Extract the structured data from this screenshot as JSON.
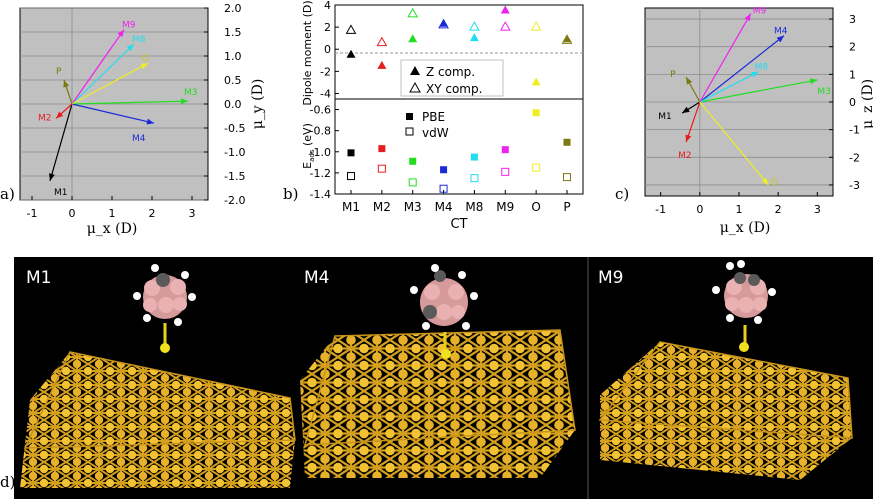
{
  "panel_labels": [
    "a)",
    "b)",
    "c)",
    "d)"
  ],
  "colors": {
    "plot_bg": "#c0c0c0",
    "M1": "#000000",
    "M2": "#e61e1e",
    "M3": "#22dd22",
    "M4": "#1a2ad8",
    "M8": "#22ddee",
    "M9": "#ee22ee",
    "O": "#eeee22",
    "P": "#7a7a10",
    "gold": "#e2b52a",
    "render_bg": "#000000"
  },
  "chart_data": [
    {
      "id": "a",
      "type": "scatter",
      "mode": "vectors",
      "xlabel": "μ_x (D)",
      "ylabel": "μ_y (D)",
      "xticks": [
        -1,
        0,
        1,
        2,
        3
      ],
      "yticks": [
        "2.0",
        "1.5",
        "1.0",
        "0.5",
        "0.0",
        "-0.5",
        "-1.0",
        "-1.5",
        "-2.0"
      ],
      "xlim": [
        -1.3,
        3.4
      ],
      "ylim": [
        -2.0,
        2.0
      ],
      "grid": true,
      "series": [
        {
          "name": "M1",
          "x": -0.55,
          "y": -1.6
        },
        {
          "name": "M2",
          "x": -0.4,
          "y": -0.3
        },
        {
          "name": "M3",
          "x": 2.9,
          "y": 0.06
        },
        {
          "name": "M4",
          "x": 2.05,
          "y": -0.4
        },
        {
          "name": "M8",
          "x": 1.55,
          "y": 1.25
        },
        {
          "name": "M9",
          "x": 1.3,
          "y": 1.55
        },
        {
          "name": "O",
          "x": 1.9,
          "y": 0.85
        },
        {
          "name": "P",
          "x": -0.2,
          "y": 0.5
        }
      ]
    },
    {
      "id": "b_top",
      "type": "scatter",
      "ylabel": "Dipole moment (D)",
      "categories": [
        "M1",
        "M2",
        "M3",
        "M4",
        "M8",
        "M9",
        "O",
        "P"
      ],
      "yticks": [
        "4",
        "2",
        "0",
        "-2",
        "-4"
      ],
      "ylim": [
        -4.5,
        4.0
      ],
      "series": [
        {
          "name": "Z comp.",
          "marker": "filled-triangle",
          "values": [
            -0.5,
            -1.5,
            0.9,
            2.3,
            1.0,
            3.5,
            -3.0,
            0.9
          ]
        },
        {
          "name": "XY comp.",
          "marker": "open-triangle",
          "values": [
            1.7,
            0.6,
            3.2,
            2.2,
            2.0,
            2.0,
            2.0,
            0.8
          ]
        }
      ],
      "legend_position": "bottom-right"
    },
    {
      "id": "b_bottom",
      "type": "scatter",
      "ylabel": "E_ads (eV)",
      "xlabel": "CT",
      "categories": [
        "M1",
        "M2",
        "M3",
        "M4",
        "M8",
        "M9",
        "O",
        "P"
      ],
      "yticks": [
        "-0.6",
        "-0.8",
        "-1.0",
        "-1.2",
        "-1.4"
      ],
      "ylim": [
        -1.4,
        -0.5
      ],
      "series": [
        {
          "name": "PBE",
          "marker": "filled-square",
          "values": [
            -1.01,
            -0.97,
            -1.09,
            -1.17,
            -1.05,
            -0.98,
            -0.63,
            -0.91
          ]
        },
        {
          "name": "vdW",
          "marker": "open-square",
          "values": [
            -1.23,
            -1.16,
            -1.29,
            -1.35,
            -1.25,
            -1.19,
            -1.15,
            -1.24
          ]
        }
      ],
      "legend_position": "top-right"
    },
    {
      "id": "c",
      "type": "scatter",
      "mode": "vectors",
      "xlabel": "μ_x (D)",
      "ylabel": "μ_z (D)",
      "xticks": [
        -1,
        0,
        1,
        2,
        3
      ],
      "yticks": [
        "3",
        "2",
        "1",
        "0",
        "-1",
        "-2",
        "-3"
      ],
      "xlim": [
        -1.4,
        3.4
      ],
      "ylim": [
        -3.4,
        3.4
      ],
      "grid": true,
      "series": [
        {
          "name": "M1",
          "x": -0.45,
          "y": -0.4
        },
        {
          "name": "M2",
          "x": -0.35,
          "y": -1.45
        },
        {
          "name": "M3",
          "x": 3.0,
          "y": 0.8
        },
        {
          "name": "M4",
          "x": 2.15,
          "y": 2.4
        },
        {
          "name": "M8",
          "x": 1.5,
          "y": 1.1
        },
        {
          "name": "M9",
          "x": 1.3,
          "y": 3.2
        },
        {
          "name": "O",
          "x": 1.75,
          "y": -3.0
        },
        {
          "name": "P",
          "x": -0.35,
          "y": 0.9
        }
      ]
    }
  ],
  "render_labels": [
    "M1",
    "M4",
    "M9"
  ]
}
